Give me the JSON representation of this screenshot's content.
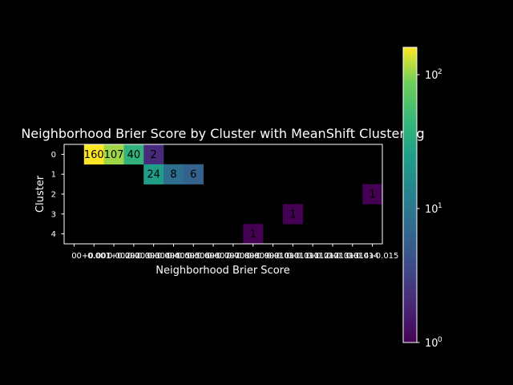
{
  "chart_data": {
    "type": "heatmap",
    "title": "Neighborhood Brier Score by Cluster with MeanShift Clustering",
    "xlabel": "Neighborhood Brier Score",
    "ylabel": "Cluster",
    "x_tick_labels": [
      "0",
      "0+0.001",
      "0.001+0.002",
      "0.002+0.003",
      "0.003+0.004",
      "0.004+0.005",
      "0.005+0.006",
      "0.006+0.007",
      "0.007+0.008",
      "0.008+0.009",
      "0.009+0.010",
      "0.010+0.011",
      "0.011+0.012",
      "0.012+0.013",
      "0.013+0.014",
      "0.014+0.015"
    ],
    "y_tick_labels": [
      "0",
      "1",
      "2",
      "3",
      "4"
    ],
    "cells": [
      {
        "row": 0,
        "col": 1,
        "value": 160,
        "label": "160"
      },
      {
        "row": 0,
        "col": 2,
        "value": 107,
        "label": "107"
      },
      {
        "row": 0,
        "col": 3,
        "value": 40,
        "label": "40"
      },
      {
        "row": 0,
        "col": 4,
        "value": 2,
        "label": "2"
      },
      {
        "row": 1,
        "col": 4,
        "value": 24,
        "label": "24"
      },
      {
        "row": 1,
        "col": 5,
        "value": 8,
        "label": "8"
      },
      {
        "row": 1,
        "col": 6,
        "value": 6,
        "label": "6"
      },
      {
        "row": 2,
        "col": 15,
        "value": 1,
        "label": "1"
      },
      {
        "row": 3,
        "col": 11,
        "value": 1,
        "label": "1"
      },
      {
        "row": 4,
        "col": 9,
        "value": 1,
        "label": "1"
      }
    ],
    "colorbar": {
      "scale": "log",
      "colormap": "viridis",
      "min": 1,
      "max": 160,
      "tick_bases": [
        "10",
        "10",
        "10"
      ],
      "tick_exponents": [
        "0",
        "1",
        "2"
      ],
      "tick_values": [
        1,
        10,
        100
      ]
    },
    "colors": {
      "background": "#000000",
      "foreground": "#ffffff",
      "text_on_cell": "#000000"
    }
  }
}
